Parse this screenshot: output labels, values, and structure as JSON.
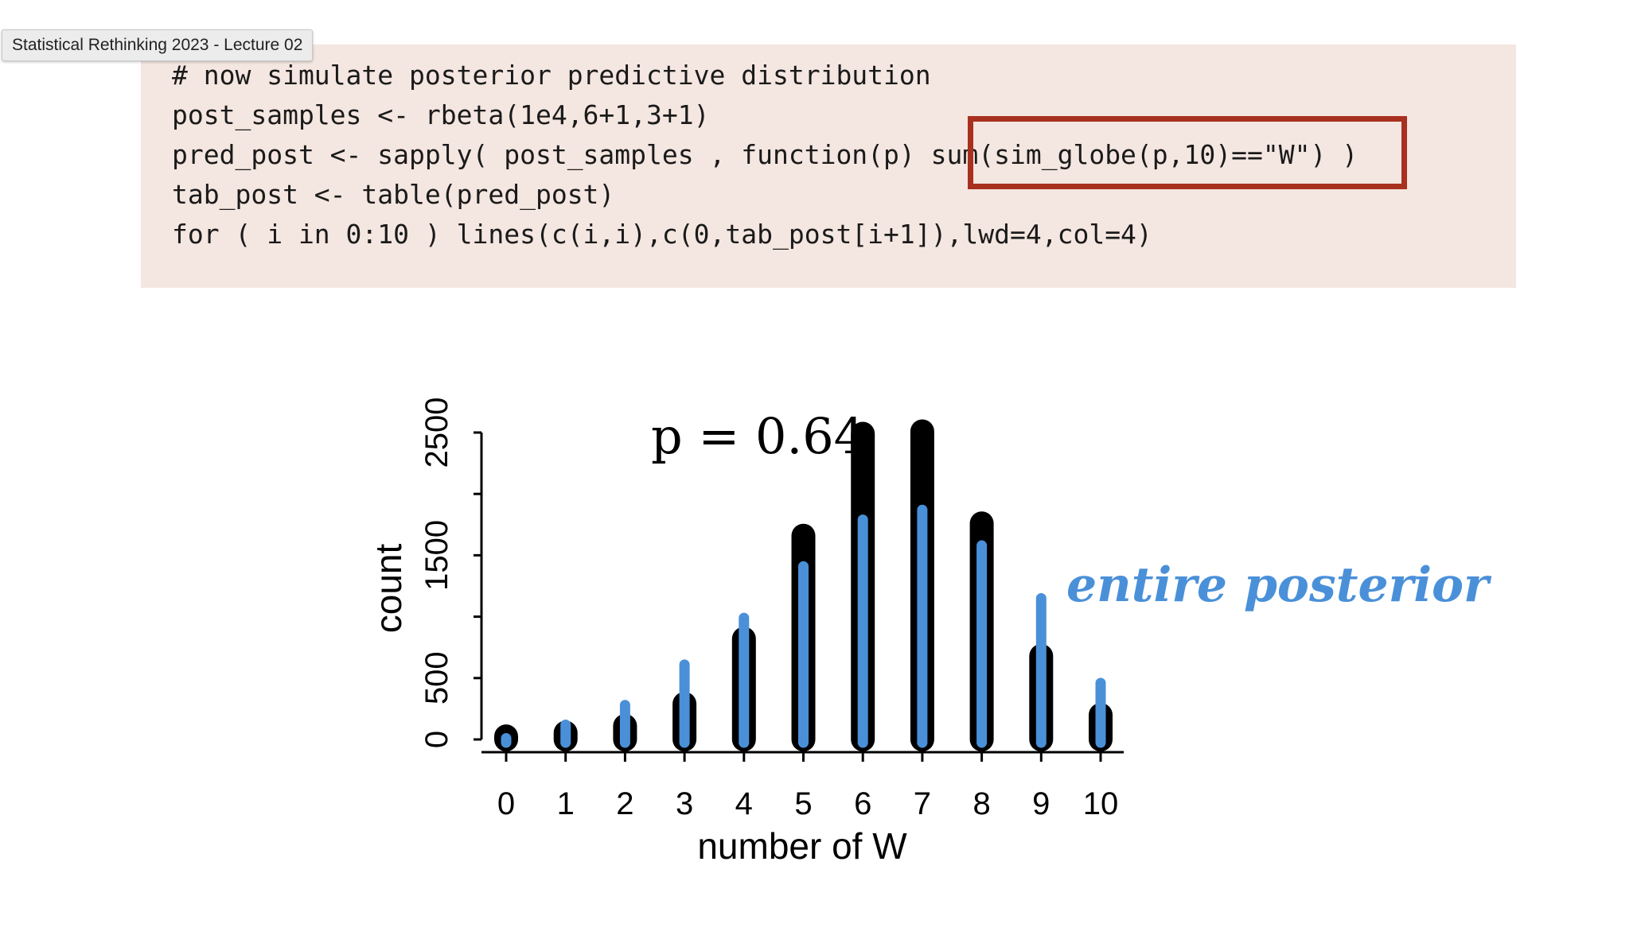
{
  "window": {
    "tooltip": "Statistical Rethinking 2023 - Lecture 02"
  },
  "code": {
    "lines": [
      "# now simulate posterior predictive distribution",
      "post_samples <- rbeta(1e4,6+1,3+1)",
      "pred_post <- sapply( post_samples , function(p) sum(sim_globe(p,10)==\"W\") )",
      "tab_post <- table(pred_post)",
      "for ( i in 0:10 ) lines(c(i,i),c(0,tab_post[i+1]),lwd=4,col=4)"
    ],
    "highlighted_text": "sum(sim_globe(p,10)==\"W\")",
    "highlight_color": "#a8301f",
    "background_color": "#f4e6e0"
  },
  "chart_data": {
    "type": "bar",
    "title": "",
    "xlabel": "number of W",
    "ylabel": "count",
    "categories": [
      "0",
      "1",
      "2",
      "3",
      "4",
      "5",
      "6",
      "7",
      "8",
      "9",
      "10"
    ],
    "x_ticks": [
      "0",
      "1",
      "2",
      "3",
      "4",
      "5",
      "6",
      "7",
      "8",
      "9",
      "10"
    ],
    "y_ticks": [
      "0",
      "500",
      "1500",
      "2500"
    ],
    "ylim": [
      0,
      2600
    ],
    "series": [
      {
        "values": [
          25,
          55,
          110,
          290,
          820,
          1660,
          2490,
          2510,
          1760,
          680,
          200
        ],
        "color": "#000000"
      },
      {
        "values": [
          10,
          120,
          280,
          610,
          990,
          1410,
          1790,
          1870,
          1580,
          1150,
          460
        ],
        "color": "#4a90d9"
      }
    ],
    "annotations": {
      "p_label": "p = 0.64",
      "entire_posterior": "entire posterior",
      "entire_posterior_color": "#4a90d9"
    }
  }
}
